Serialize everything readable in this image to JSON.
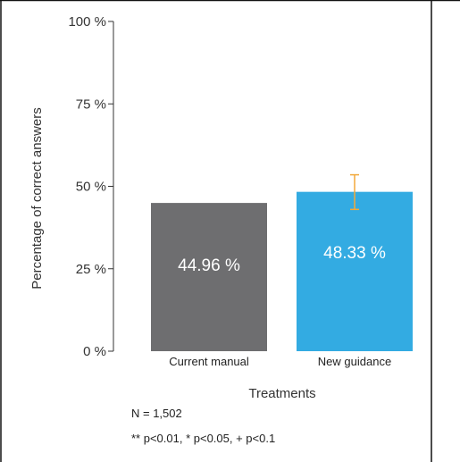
{
  "chart_data": {
    "type": "bar",
    "categories": [
      "Current manual",
      "New guidance"
    ],
    "values": [
      44.96,
      48.33
    ],
    "value_labels": [
      "44.96 %",
      "48.33 %"
    ],
    "bar_colors": [
      "#6e6e70",
      "#33abe2"
    ],
    "error_bars": [
      null,
      {
        "low": 43.0,
        "high": 53.5
      }
    ],
    "error_bar_color": "#f2a93b",
    "ylim": [
      0,
      100
    ],
    "yticks": [
      0,
      25,
      50,
      75,
      100
    ],
    "ytick_labels": [
      "0 %",
      "25 %",
      "50 %",
      "75 %",
      "100 %"
    ],
    "xlabel": "Treatments",
    "ylabel": "Percentage of correct answers",
    "grid": false,
    "legend": "none"
  },
  "notes": {
    "n": "N = 1,502",
    "significance": "** p<0.01, * p<0.05, + p<0.1"
  }
}
